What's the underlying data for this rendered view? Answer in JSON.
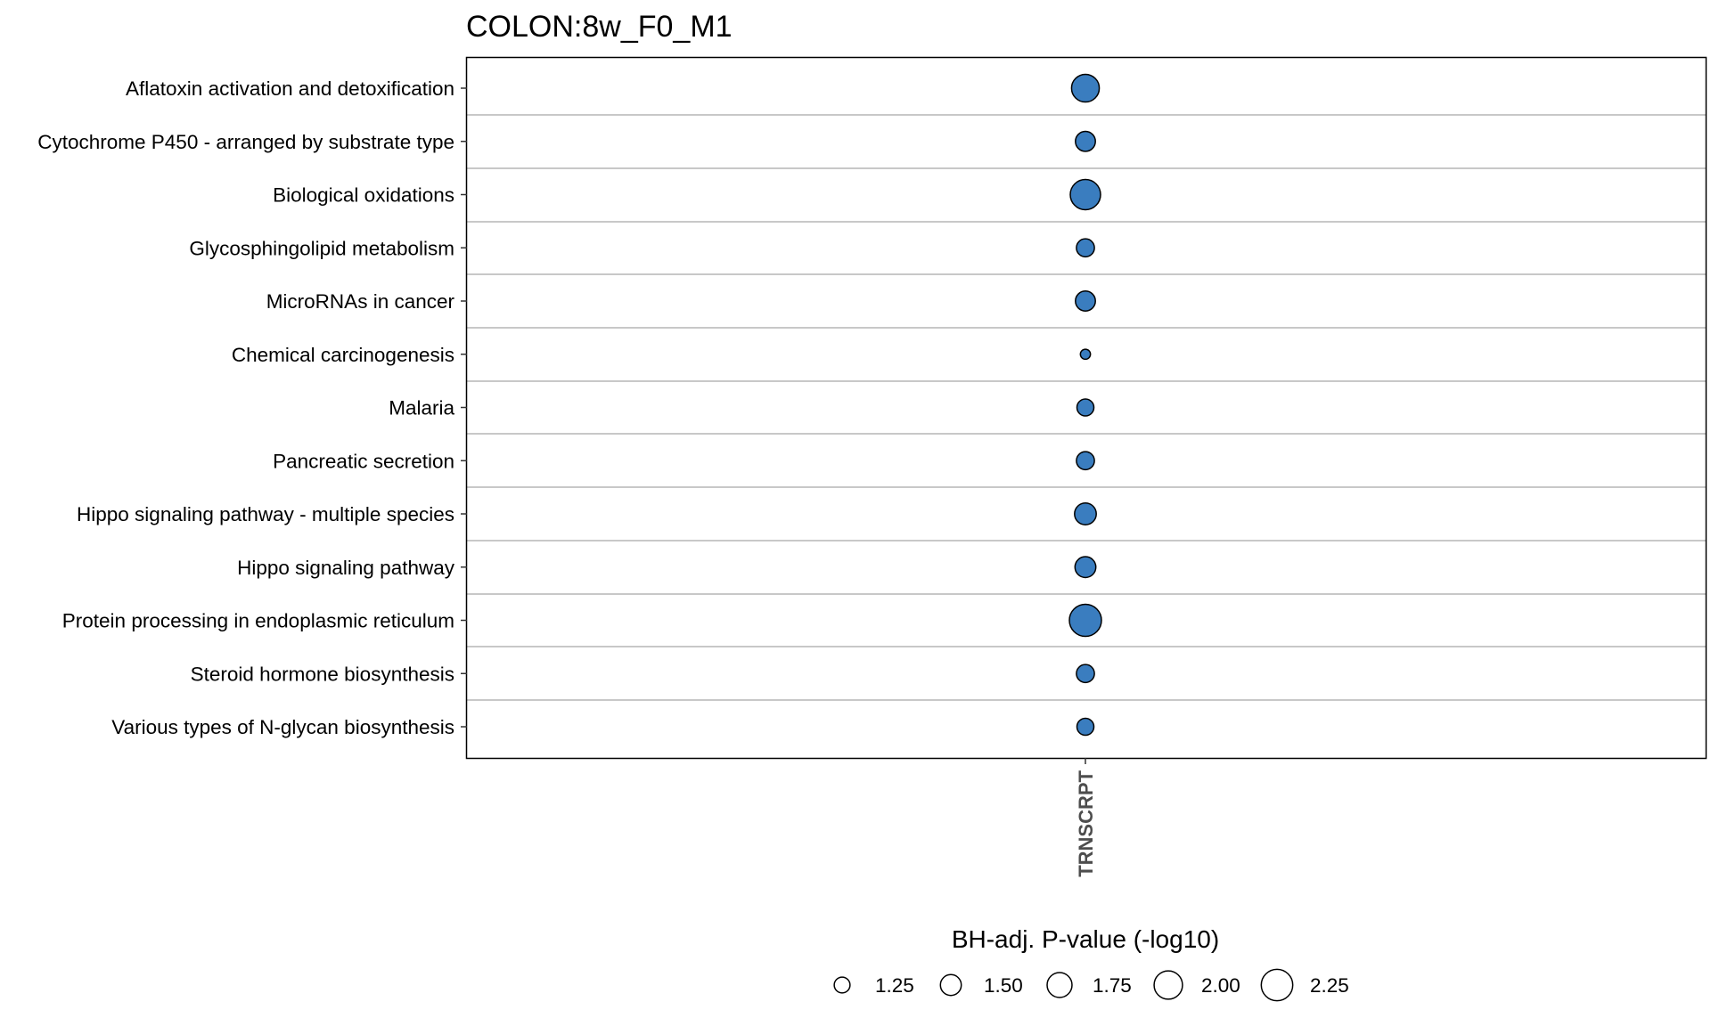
{
  "colors": {
    "point_fill": "#3a7dbf",
    "point_stroke": "#000000",
    "grid_line": "#c8c8c8",
    "panel_border": "#000000",
    "legend_key_fill": "#ffffff"
  },
  "chart_data": {
    "type": "scatter",
    "title": "COLON:8w_F0_M1",
    "x_categories": [
      "TRNSCRPT"
    ],
    "y_categories": [
      "Aflatoxin activation and detoxification",
      "Cytochrome P450 - arranged by substrate type",
      "Biological oxidations",
      "Glycosphingolipid metabolism",
      "MicroRNAs in cancer",
      "Chemical carcinogenesis",
      "Malaria",
      "Pancreatic secretion",
      "Hippo signaling pathway - multiple species",
      "Hippo signaling pathway",
      "Protein processing in endoplasmic reticulum",
      "Steroid hormone biosynthesis",
      "Various types of N-glycan biosynthesis"
    ],
    "points": [
      {
        "x": "TRNSCRPT",
        "y": "Aflatoxin activation and detoxification",
        "size_value": 1.95
      },
      {
        "x": "TRNSCRPT",
        "y": "Cytochrome P450 - arranged by substrate type",
        "size_value": 1.45
      },
      {
        "x": "TRNSCRPT",
        "y": "Biological oxidations",
        "size_value": 2.15
      },
      {
        "x": "TRNSCRPT",
        "y": "Glycosphingolipid metabolism",
        "size_value": 1.35
      },
      {
        "x": "TRNSCRPT",
        "y": "MicroRNAs in cancer",
        "size_value": 1.45
      },
      {
        "x": "TRNSCRPT",
        "y": "Chemical carcinogenesis",
        "size_value": 1.05
      },
      {
        "x": "TRNSCRPT",
        "y": "Malaria",
        "size_value": 1.3
      },
      {
        "x": "TRNSCRPT",
        "y": "Pancreatic secretion",
        "size_value": 1.35
      },
      {
        "x": "TRNSCRPT",
        "y": "Hippo signaling pathway - multiple species",
        "size_value": 1.55
      },
      {
        "x": "TRNSCRPT",
        "y": "Hippo signaling pathway",
        "size_value": 1.5
      },
      {
        "x": "TRNSCRPT",
        "y": "Protein processing in endoplasmic reticulum",
        "size_value": 2.3
      },
      {
        "x": "TRNSCRPT",
        "y": "Steroid hormone biosynthesis",
        "size_value": 1.35
      },
      {
        "x": "TRNSCRPT",
        "y": "Various types of N-glycan biosynthesis",
        "size_value": 1.3
      }
    ],
    "size_legend": {
      "title": "BH-adj. P-value (-log10)",
      "values": [
        1.25,
        1.5,
        1.75,
        2.0,
        2.25
      ],
      "labels": [
        "1.25",
        "1.50",
        "1.75",
        "2.00",
        "2.25"
      ],
      "placement": "bottom"
    },
    "grid": "horizontal"
  }
}
